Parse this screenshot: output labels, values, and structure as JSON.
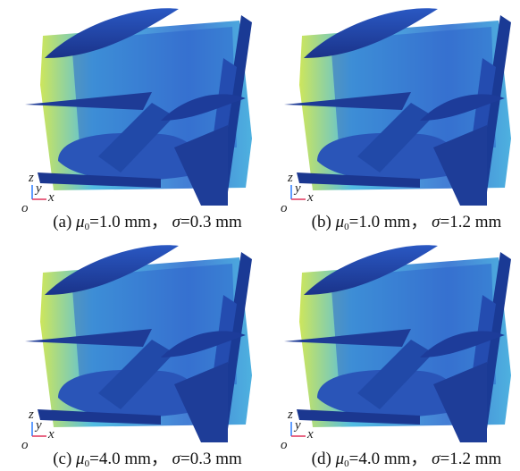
{
  "panels": [
    {
      "label": "(a)",
      "mu": "1.0 mm",
      "sigma": "0.3 mm"
    },
    {
      "label": "(b)",
      "mu": "1.0 mm",
      "sigma": "1.2 mm"
    },
    {
      "label": "(c)",
      "mu": "4.0 mm",
      "sigma": "0.3 mm"
    },
    {
      "label": "(d)",
      "mu": "4.0 mm",
      "sigma": "1.2 mm"
    }
  ],
  "symbols": {
    "mu": "μ",
    "mu_sub": "0",
    "sigma": "σ",
    "eq": "=",
    "sep": "，"
  },
  "axes": {
    "z": "z",
    "y": "y",
    "x": "x",
    "o": "o"
  },
  "colors": {
    "deep_blue": "#1f3f9e",
    "mid_blue": "#2f6fd0",
    "cyan": "#3fb6e0",
    "yellow_green": "#c8e34a"
  }
}
